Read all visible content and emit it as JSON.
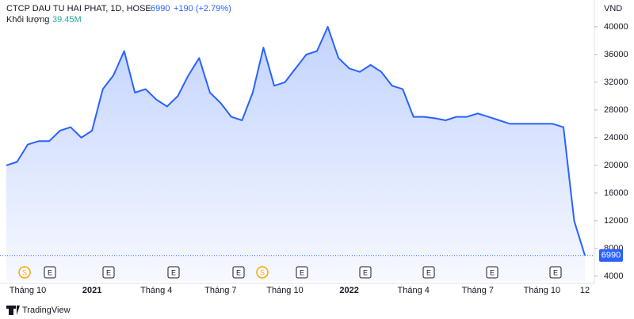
{
  "chart_data": {
    "type": "area",
    "title": "CTCP DAU TU HAI PHAT, 1D, HOSE",
    "last_price": "6990",
    "change": "+190 (+2.79%)",
    "volume_label": "Khối lượng",
    "volume_value": "39.45M",
    "currency": "VND",
    "price_tag": "6990",
    "source": "TradingView",
    "events": [
      "S",
      "E",
      "E",
      "E",
      "E",
      "S",
      "E",
      "E",
      "E",
      "E",
      "E"
    ],
    "color": "#2962ff",
    "categories": [
      null,
      null,
      "Tháng 10",
      null,
      null,
      null,
      null,
      null,
      "2021",
      null,
      null,
      null,
      null,
      null,
      "Tháng 4",
      null,
      null,
      null,
      null,
      null,
      "Tháng 7",
      null,
      null,
      null,
      null,
      null,
      "Tháng 10",
      null,
      null,
      null,
      null,
      null,
      "2022",
      null,
      null,
      null,
      null,
      null,
      "Tháng 4",
      null,
      null,
      null,
      null,
      null,
      "Tháng 7",
      null,
      null,
      null,
      null,
      null,
      "Tháng 10",
      null,
      null,
      null,
      "12"
    ],
    "values": [
      20000,
      20500,
      23000,
      23500,
      23500,
      25000,
      25500,
      24000,
      25000,
      31000,
      33000,
      36500,
      30500,
      31000,
      29500,
      28500,
      30000,
      33000,
      35500,
      30500,
      29000,
      27000,
      26500,
      30500,
      37000,
      31500,
      32000,
      34000,
      36000,
      36500,
      40000,
      35500,
      34000,
      33500,
      34500,
      33500,
      31500,
      31000,
      27000,
      27000,
      26800,
      26500,
      27000,
      27000,
      27500,
      27000,
      26500,
      26000,
      26000,
      26000,
      26000,
      26000,
      25500,
      12000,
      6990
    ],
    "ylim": [
      3300,
      43300
    ],
    "yticks": [
      4000,
      8000,
      12000,
      16000,
      20000,
      24000,
      28000,
      32000,
      36000,
      40000
    ]
  }
}
